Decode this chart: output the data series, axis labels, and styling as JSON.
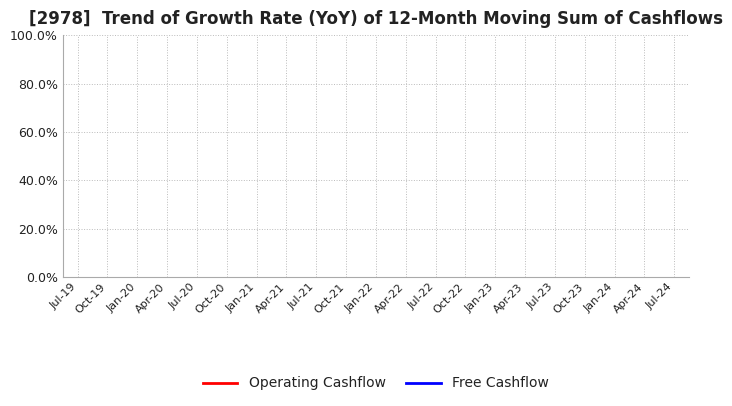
{
  "title": "[2978]  Trend of Growth Rate (YoY) of 12-Month Moving Sum of Cashflows",
  "title_color": "#222222",
  "title_fontsize": 12,
  "ylim": [
    0.0,
    1.0
  ],
  "yticks": [
    0.0,
    0.2,
    0.4,
    0.6,
    0.8,
    1.0
  ],
  "ytick_labels": [
    "0.0%",
    "20.0%",
    "40.0%",
    "60.0%",
    "80.0%",
    "100.0%"
  ],
  "xtick_labels": [
    "Jul-19",
    "Oct-19",
    "Jan-20",
    "Apr-20",
    "Jul-20",
    "Oct-20",
    "Jan-21",
    "Apr-21",
    "Jul-21",
    "Oct-21",
    "Jan-22",
    "Apr-22",
    "Jul-22",
    "Oct-22",
    "Jan-23",
    "Apr-23",
    "Jul-23",
    "Oct-23",
    "Jan-24",
    "Apr-24",
    "Jul-24"
  ],
  "grid_color": "#bbbbbb",
  "background_color": "#ffffff",
  "legend_entries": [
    {
      "label": "Operating Cashflow",
      "color": "#ff0000"
    },
    {
      "label": "Free Cashflow",
      "color": "#0000ff"
    }
  ],
  "line_width": 2.0
}
